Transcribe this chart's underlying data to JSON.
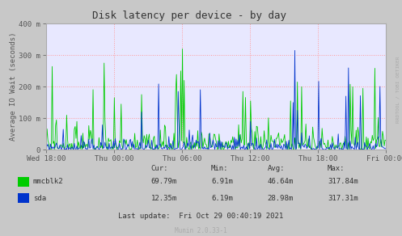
{
  "title": "Disk latency per device - by day",
  "ylabel": "Average IO Wait (seconds)",
  "bg_color": "#c8c8c8",
  "plot_bg_color": "#e8e8ff",
  "grid_color": "#ff9999",
  "mmcblk2_color": "#00cc00",
  "sda_color": "#0033cc",
  "ytick_labels": [
    "0",
    "100 m",
    "200 m",
    "300 m",
    "400 m"
  ],
  "ytick_values": [
    0,
    100,
    200,
    300,
    400
  ],
  "xtick_labels": [
    "Wed 18:00",
    "Thu 00:00",
    "Thu 06:00",
    "Thu 12:00",
    "Thu 18:00",
    "Fri 00:00"
  ],
  "watermark": "RRDTOOL / TOBI OETIKER",
  "munin_label": "Munin 2.0.33-1",
  "legend": {
    "mmcblk2": {
      "cur": "69.79m",
      "min": "6.91m",
      "avg": "46.64m",
      "max": "317.84m"
    },
    "sda": {
      "cur": "12.35m",
      "min": "6.19m",
      "avg": "28.98m",
      "max": "317.31m"
    }
  },
  "last_update": "Last update:  Fri Oct 29 00:40:19 2021",
  "ylim": [
    0,
    400
  ],
  "num_points": 400
}
